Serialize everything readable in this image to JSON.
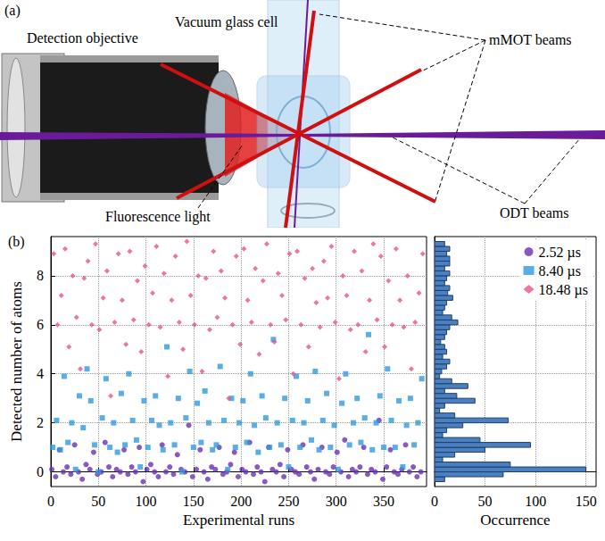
{
  "diagram": {
    "panel_label": "(a)",
    "objective": "Detection objective",
    "glass_cell": "Vacuum glass cell",
    "mot_beams": "mMOT beams",
    "fluorescence": "Fluorescence light",
    "odt_beams": "ODT beams"
  },
  "chart_data": [
    {
      "type": "scatter",
      "panel_label": "(b)",
      "x_label": "Experimental runs",
      "y_label": "Detected number of atoms",
      "xlim": [
        0,
        395
      ],
      "xticks": [
        0,
        50,
        100,
        150,
        200,
        250,
        300,
        350
      ],
      "ylim": [
        -0.6,
        9.6
      ],
      "yticks": [
        0,
        2,
        4,
        6,
        8
      ],
      "grid": true,
      "legend": "upper right",
      "series": [
        {
          "name": "2.52 µs",
          "color": "#6b2fb3",
          "marker": "circle",
          "x": [
            1,
            5,
            9,
            13,
            17,
            21,
            25,
            29,
            33,
            37,
            41,
            45,
            49,
            53,
            57,
            61,
            65,
            69,
            73,
            77,
            81,
            85,
            89,
            93,
            97,
            101,
            105,
            109,
            113,
            117,
            121,
            125,
            129,
            133,
            137,
            141,
            145,
            149,
            153,
            157,
            161,
            165,
            169,
            173,
            177,
            181,
            185,
            189,
            193,
            197,
            201,
            205,
            209,
            213,
            217,
            221,
            225,
            229,
            233,
            237,
            241,
            245,
            249,
            253,
            257,
            261,
            265,
            269,
            273,
            277,
            281,
            285,
            289,
            293,
            297,
            301,
            305,
            309,
            313,
            317,
            321,
            325,
            329,
            333,
            337,
            341,
            345,
            349,
            353,
            357,
            361,
            365,
            369,
            373,
            377,
            381,
            385,
            389
          ],
          "values": [
            0.1,
            -0.2,
            0.9,
            0.0,
            0.2,
            -0.1,
            1.1,
            0.0,
            -0.3,
            0.3,
            0.1,
            0.8,
            -0.1,
            0.0,
            1.2,
            0.2,
            -0.2,
            0.1,
            0.0,
            0.9,
            -0.1,
            0.2,
            0.0,
            1.0,
            -0.4,
            0.1,
            0.3,
            0.0,
            -0.2,
            1.1,
            0.0,
            0.2,
            -0.1,
            0.7,
            0.1,
            0.0,
            1.9,
            -0.2,
            0.1,
            0.9,
            0.0,
            -0.3,
            0.2,
            0.1,
            1.0,
            -0.1,
            0.0,
            0.3,
            0.8,
            -0.2,
            0.1,
            0.0,
            1.2,
            -0.1,
            0.2,
            0.0,
            -0.4,
            1.0,
            0.1,
            0.0,
            0.3,
            -0.2,
            0.9,
            0.1,
            0.0,
            -0.1,
            1.1,
            0.2,
            0.0,
            -0.3,
            0.1,
            1.0,
            0.0,
            -0.1,
            0.2,
            0.8,
            0.0,
            1.3,
            -0.2,
            0.1,
            0.0,
            0.2,
            1.0,
            -0.1,
            0.1,
            0.0,
            2.1,
            -0.3,
            0.2,
            0.9,
            0.0,
            -0.1,
            0.1,
            1.1,
            0.0,
            0.2,
            -0.2,
            0.0
          ]
        },
        {
          "name": "8.40 µs",
          "color": "#2f9ae0",
          "marker": "square",
          "x": [
            2,
            6,
            10,
            14,
            18,
            22,
            26,
            30,
            34,
            38,
            42,
            46,
            50,
            54,
            58,
            62,
            66,
            70,
            74,
            78,
            82,
            86,
            90,
            94,
            98,
            102,
            106,
            110,
            114,
            118,
            122,
            126,
            130,
            134,
            138,
            142,
            146,
            150,
            154,
            158,
            162,
            166,
            170,
            174,
            178,
            182,
            186,
            190,
            194,
            198,
            202,
            206,
            210,
            214,
            218,
            222,
            226,
            230,
            234,
            238,
            242,
            246,
            250,
            254,
            258,
            262,
            266,
            270,
            274,
            278,
            282,
            286,
            290,
            294,
            298,
            302,
            306,
            310,
            314,
            318,
            322,
            326,
            330,
            334,
            338,
            342,
            346,
            350,
            354,
            358,
            362,
            366,
            370,
            374,
            378,
            382,
            386,
            390
          ],
          "values": [
            1.0,
            2.1,
            0.9,
            3.9,
            1.2,
            2.0,
            0.1,
            3.1,
            1.8,
            4.2,
            2.9,
            1.1,
            0.0,
            2.2,
            3.8,
            1.0,
            2.0,
            0.8,
            3.2,
            1.1,
            4.0,
            2.1,
            1.3,
            0.2,
            2.9,
            1.0,
            2.1,
            3.1,
            1.9,
            0.9,
            5.1,
            2.0,
            1.1,
            3.0,
            0.0,
            2.2,
            4.1,
            1.0,
            2.8,
            1.2,
            3.3,
            2.0,
            0.9,
            1.1,
            4.3,
            2.1,
            0.1,
            3.0,
            1.0,
            2.0,
            2.9,
            1.2,
            4.0,
            1.9,
            0.8,
            3.1,
            2.2,
            1.0,
            5.4,
            2.0,
            1.1,
            3.0,
            0.2,
            2.1,
            3.9,
            1.0,
            2.0,
            2.9,
            1.3,
            4.1,
            0.9,
            2.1,
            3.2,
            1.0,
            1.9,
            0.1,
            2.8,
            4.0,
            1.1,
            2.0,
            3.0,
            1.2,
            2.2,
            5.6,
            0.9,
            2.0,
            3.1,
            1.0,
            4.2,
            2.1,
            1.0,
            2.9,
            0.2,
            1.9,
            3.0,
            1.1,
            2.0,
            3.8
          ]
        },
        {
          "name": "18.48 µs",
          "color": "#e9528c",
          "marker": "diamond",
          "x": [
            3,
            7,
            11,
            15,
            19,
            23,
            27,
            31,
            35,
            39,
            43,
            47,
            51,
            55,
            59,
            63,
            67,
            71,
            75,
            79,
            83,
            87,
            91,
            95,
            99,
            103,
            107,
            111,
            115,
            119,
            123,
            127,
            131,
            135,
            139,
            143,
            147,
            151,
            155,
            159,
            163,
            167,
            171,
            175,
            179,
            183,
            187,
            191,
            195,
            199,
            203,
            207,
            211,
            215,
            219,
            223,
            227,
            231,
            235,
            239,
            243,
            247,
            251,
            255,
            259,
            263,
            267,
            271,
            275,
            279,
            283,
            287,
            291,
            295,
            299,
            303,
            307,
            311,
            315,
            319,
            323,
            327,
            331,
            335,
            339,
            343,
            347,
            351,
            355,
            359,
            363,
            367,
            371,
            375,
            379,
            383,
            387,
            391
          ],
          "values": [
            8.9,
            6.0,
            7.2,
            9.1,
            5.1,
            8.0,
            6.3,
            4.2,
            7.9,
            8.6,
            6.0,
            9.3,
            5.8,
            7.1,
            8.2,
            3.1,
            6.1,
            8.9,
            7.0,
            5.2,
            9.0,
            6.2,
            7.8,
            4.9,
            8.4,
            6.0,
            7.3,
            9.2,
            5.9,
            8.1,
            3.9,
            7.0,
            8.8,
            6.1,
            5.0,
            9.4,
            7.2,
            6.0,
            8.0,
            4.1,
            7.9,
            5.8,
            9.0,
            6.3,
            8.2,
            7.1,
            3.0,
            6.0,
            8.8,
            5.2,
            9.1,
            7.0,
            6.1,
            8.3,
            4.8,
            7.8,
            9.3,
            6.0,
            5.3,
            8.1,
            7.2,
            6.2,
            8.9,
            4.0,
            9.0,
            6.0,
            7.9,
            5.1,
            8.3,
            6.9,
            5.9,
            8.6,
            7.1,
            9.2,
            6.1,
            3.8,
            8.0,
            7.2,
            5.8,
            9.0,
            6.0,
            8.2,
            4.9,
            7.0,
            9.3,
            6.2,
            8.8,
            5.1,
            7.8,
            6.0,
            9.1,
            7.0,
            5.9,
            8.0,
            4.2,
            6.1,
            7.3,
            8.9
          ]
        }
      ]
    },
    {
      "type": "histogram",
      "orientation": "horizontal",
      "x_label": "Occurrence",
      "color": "#4a7fc1",
      "bins": [
        -0.4,
        -0.2,
        0,
        0.2,
        0.4,
        0.6,
        0.8,
        1,
        1.2,
        1.4,
        1.6,
        1.8,
        2,
        2.2,
        2.4,
        2.6,
        2.8,
        3,
        3.2,
        3.4,
        3.6,
        3.8,
        4,
        4.2,
        4.4,
        4.6,
        4.8,
        5,
        5.2,
        5.4,
        5.6,
        5.8,
        6,
        6.2,
        6.4,
        6.6,
        6.8,
        7,
        7.2,
        7.4,
        7.6,
        7.8,
        8,
        8.2,
        8.4,
        8.6,
        8.8,
        9,
        9.2,
        9.4
      ],
      "counts": [
        10,
        68,
        150,
        75,
        8,
        20,
        50,
        95,
        45,
        8,
        12,
        28,
        73,
        20,
        5,
        10,
        40,
        22,
        10,
        33,
        17,
        5,
        7,
        12,
        15,
        8,
        12,
        10,
        6,
        10,
        12,
        15,
        23,
        17,
        8,
        10,
        12,
        18,
        13,
        15,
        10,
        12,
        15,
        10,
        15,
        15,
        12,
        15,
        10
      ],
      "xlim": [
        0,
        160
      ],
      "xticks": [
        0,
        50,
        100,
        150
      ],
      "ylim": [
        -0.6,
        9.6
      ],
      "yticks": [
        0,
        2,
        4,
        6,
        8
      ],
      "grid": true,
      "tick_labels": "x"
    }
  ]
}
